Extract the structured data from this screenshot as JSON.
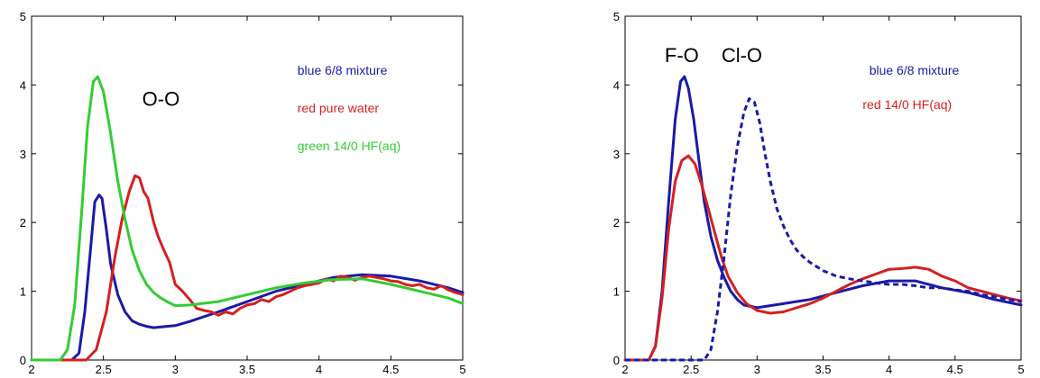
{
  "chart_data": [
    {
      "type": "line",
      "xlim": [
        2,
        5
      ],
      "ylim": [
        0,
        5
      ],
      "xticks": [
        "2",
        "2.5",
        "3",
        "3.5",
        "4",
        "4.5",
        "5"
      ],
      "yticks": [
        "0",
        "1",
        "2",
        "3",
        "4",
        "5"
      ],
      "grid": false,
      "annotations": [
        {
          "text": "O-O",
          "x": 2.77,
          "y": 3.7,
          "size": "large",
          "color": "#000000"
        },
        {
          "text": "blue  6/8 mixture",
          "x": 3.85,
          "y": 4.15,
          "size": "small",
          "color": "#1a1aa8"
        },
        {
          "text": "red pure water",
          "x": 3.85,
          "y": 3.6,
          "size": "small",
          "color": "#d42020"
        },
        {
          "text": "green 14/0   HF(aq)",
          "x": 3.85,
          "y": 3.05,
          "size": "small",
          "color": "#33cc33"
        }
      ],
      "series": [
        {
          "color": "#1a1aa8",
          "dash": false,
          "x": [
            2.0,
            2.28,
            2.33,
            2.37,
            2.41,
            2.44,
            2.47,
            2.49,
            2.52,
            2.55,
            2.6,
            2.65,
            2.7,
            2.75,
            2.8,
            2.85,
            2.9,
            3.0,
            3.1,
            3.3,
            3.5,
            3.7,
            3.9,
            4.1,
            4.3,
            4.5,
            4.7,
            4.9,
            5.0
          ],
          "y": [
            0,
            0,
            0.1,
            0.7,
            1.6,
            2.3,
            2.4,
            2.35,
            1.9,
            1.4,
            0.95,
            0.7,
            0.57,
            0.52,
            0.49,
            0.47,
            0.48,
            0.5,
            0.56,
            0.7,
            0.85,
            1.0,
            1.1,
            1.2,
            1.24,
            1.22,
            1.15,
            1.05,
            0.98
          ]
        },
        {
          "color": "#d42020",
          "dash": false,
          "x": [
            2.0,
            2.38,
            2.45,
            2.52,
            2.58,
            2.63,
            2.68,
            2.72,
            2.75,
            2.78,
            2.81,
            2.85,
            2.88,
            2.92,
            2.96,
            3.0,
            3.05,
            3.1,
            3.15,
            3.2,
            3.25,
            3.3,
            3.35,
            3.4,
            3.45,
            3.5,
            3.55,
            3.6,
            3.65,
            3.7,
            3.75,
            3.8,
            3.85,
            3.9,
            3.95,
            4.0,
            4.05,
            4.1,
            4.15,
            4.2,
            4.25,
            4.3,
            4.35,
            4.4,
            4.45,
            4.5,
            4.55,
            4.6,
            4.65,
            4.7,
            4.75,
            4.8,
            4.85,
            4.9,
            4.95,
            5.0
          ],
          "y": [
            0,
            0,
            0.15,
            0.7,
            1.5,
            2.05,
            2.45,
            2.68,
            2.65,
            2.45,
            2.35,
            2.0,
            1.8,
            1.6,
            1.42,
            1.1,
            1.0,
            0.88,
            0.75,
            0.72,
            0.7,
            0.65,
            0.7,
            0.67,
            0.75,
            0.8,
            0.82,
            0.88,
            0.85,
            0.92,
            0.95,
            1.0,
            1.05,
            1.08,
            1.1,
            1.12,
            1.18,
            1.15,
            1.22,
            1.2,
            1.16,
            1.2,
            1.22,
            1.2,
            1.18,
            1.15,
            1.14,
            1.1,
            1.08,
            1.1,
            1.05,
            1.03,
            1.08,
            1.02,
            0.98,
            0.95
          ]
        },
        {
          "color": "#33cc33",
          "dash": false,
          "x": [
            2.0,
            2.2,
            2.25,
            2.3,
            2.35,
            2.39,
            2.43,
            2.46,
            2.5,
            2.55,
            2.6,
            2.65,
            2.7,
            2.75,
            2.8,
            2.85,
            2.9,
            2.95,
            3.0,
            3.1,
            3.3,
            3.5,
            3.7,
            3.9,
            4.1,
            4.3,
            4.5,
            4.7,
            4.9,
            5.0
          ],
          "y": [
            0,
            0,
            0.15,
            0.8,
            2.2,
            3.4,
            4.05,
            4.12,
            3.9,
            3.3,
            2.6,
            2.05,
            1.6,
            1.3,
            1.1,
            0.98,
            0.9,
            0.84,
            0.79,
            0.8,
            0.85,
            0.95,
            1.05,
            1.12,
            1.17,
            1.18,
            1.1,
            1.0,
            0.9,
            0.82
          ]
        }
      ]
    },
    {
      "type": "line",
      "xlim": [
        2,
        5
      ],
      "ylim": [
        0,
        5
      ],
      "xticks": [
        "2",
        "2.5",
        "3",
        "3.5",
        "4",
        "4.5",
        "5"
      ],
      "yticks": [
        "0",
        "1",
        "2",
        "3",
        "4",
        "5"
      ],
      "grid": false,
      "annotations": [
        {
          "text": "F-O",
          "x": 2.3,
          "y": 4.33,
          "size": "large",
          "color": "#000000"
        },
        {
          "text": "Cl-O",
          "x": 2.73,
          "y": 4.33,
          "size": "large",
          "color": "#000000"
        },
        {
          "text": "blue  6/8 mixture",
          "x": 3.85,
          "y": 4.15,
          "size": "small",
          "color": "#1a1aa8"
        },
        {
          "text": "red 14/0 HF(aq)",
          "x": 3.8,
          "y": 3.65,
          "size": "small",
          "color": "#d42020"
        }
      ],
      "series": [
        {
          "color": "#1a1aa8",
          "dash": false,
          "x": [
            2.0,
            2.18,
            2.23,
            2.28,
            2.33,
            2.38,
            2.42,
            2.45,
            2.48,
            2.52,
            2.56,
            2.6,
            2.65,
            2.7,
            2.75,
            2.8,
            2.85,
            2.9,
            2.95,
            3.0,
            3.2,
            3.4,
            3.6,
            3.8,
            4.0,
            4.2,
            4.4,
            4.6,
            4.8,
            5.0
          ],
          "y": [
            0,
            0,
            0.2,
            1.0,
            2.3,
            3.5,
            4.05,
            4.12,
            3.95,
            3.5,
            2.9,
            2.3,
            1.8,
            1.45,
            1.2,
            1.0,
            0.88,
            0.8,
            0.78,
            0.76,
            0.82,
            0.88,
            0.98,
            1.08,
            1.15,
            1.15,
            1.05,
            0.98,
            0.88,
            0.8
          ]
        },
        {
          "color": "#d42020",
          "dash": false,
          "x": [
            2.0,
            2.18,
            2.23,
            2.28,
            2.33,
            2.38,
            2.43,
            2.48,
            2.53,
            2.58,
            2.63,
            2.68,
            2.73,
            2.78,
            2.85,
            2.92,
            3.0,
            3.1,
            3.2,
            3.3,
            3.4,
            3.5,
            3.6,
            3.7,
            3.8,
            3.9,
            4.0,
            4.1,
            4.2,
            4.3,
            4.4,
            4.5,
            4.6,
            4.7,
            4.8,
            4.9,
            5.0
          ],
          "y": [
            0,
            0,
            0.2,
            0.9,
            1.9,
            2.6,
            2.9,
            2.97,
            2.85,
            2.55,
            2.2,
            1.85,
            1.5,
            1.22,
            0.98,
            0.82,
            0.72,
            0.68,
            0.7,
            0.76,
            0.82,
            0.9,
            1.0,
            1.1,
            1.18,
            1.25,
            1.32,
            1.33,
            1.35,
            1.32,
            1.22,
            1.15,
            1.05,
            1.0,
            0.95,
            0.9,
            0.86
          ]
        },
        {
          "color": "#1a1aa8",
          "dash": true,
          "x": [
            2.0,
            2.6,
            2.65,
            2.7,
            2.75,
            2.8,
            2.85,
            2.9,
            2.94,
            2.98,
            3.02,
            3.06,
            3.1,
            3.15,
            3.2,
            3.25,
            3.3,
            3.35,
            3.4,
            3.5,
            3.6,
            3.7,
            3.8,
            3.9,
            4.0,
            4.1,
            4.2,
            4.3,
            4.4,
            4.5,
            4.6,
            4.7,
            4.8,
            4.9,
            5.0
          ],
          "y": [
            0,
            0,
            0.15,
            0.7,
            1.5,
            2.4,
            3.1,
            3.6,
            3.8,
            3.75,
            3.45,
            3.0,
            2.6,
            2.2,
            1.95,
            1.75,
            1.6,
            1.5,
            1.42,
            1.3,
            1.22,
            1.18,
            1.15,
            1.12,
            1.1,
            1.1,
            1.08,
            1.05,
            1.05,
            1.02,
            1.0,
            0.95,
            0.92,
            0.88,
            0.85
          ]
        }
      ]
    }
  ]
}
